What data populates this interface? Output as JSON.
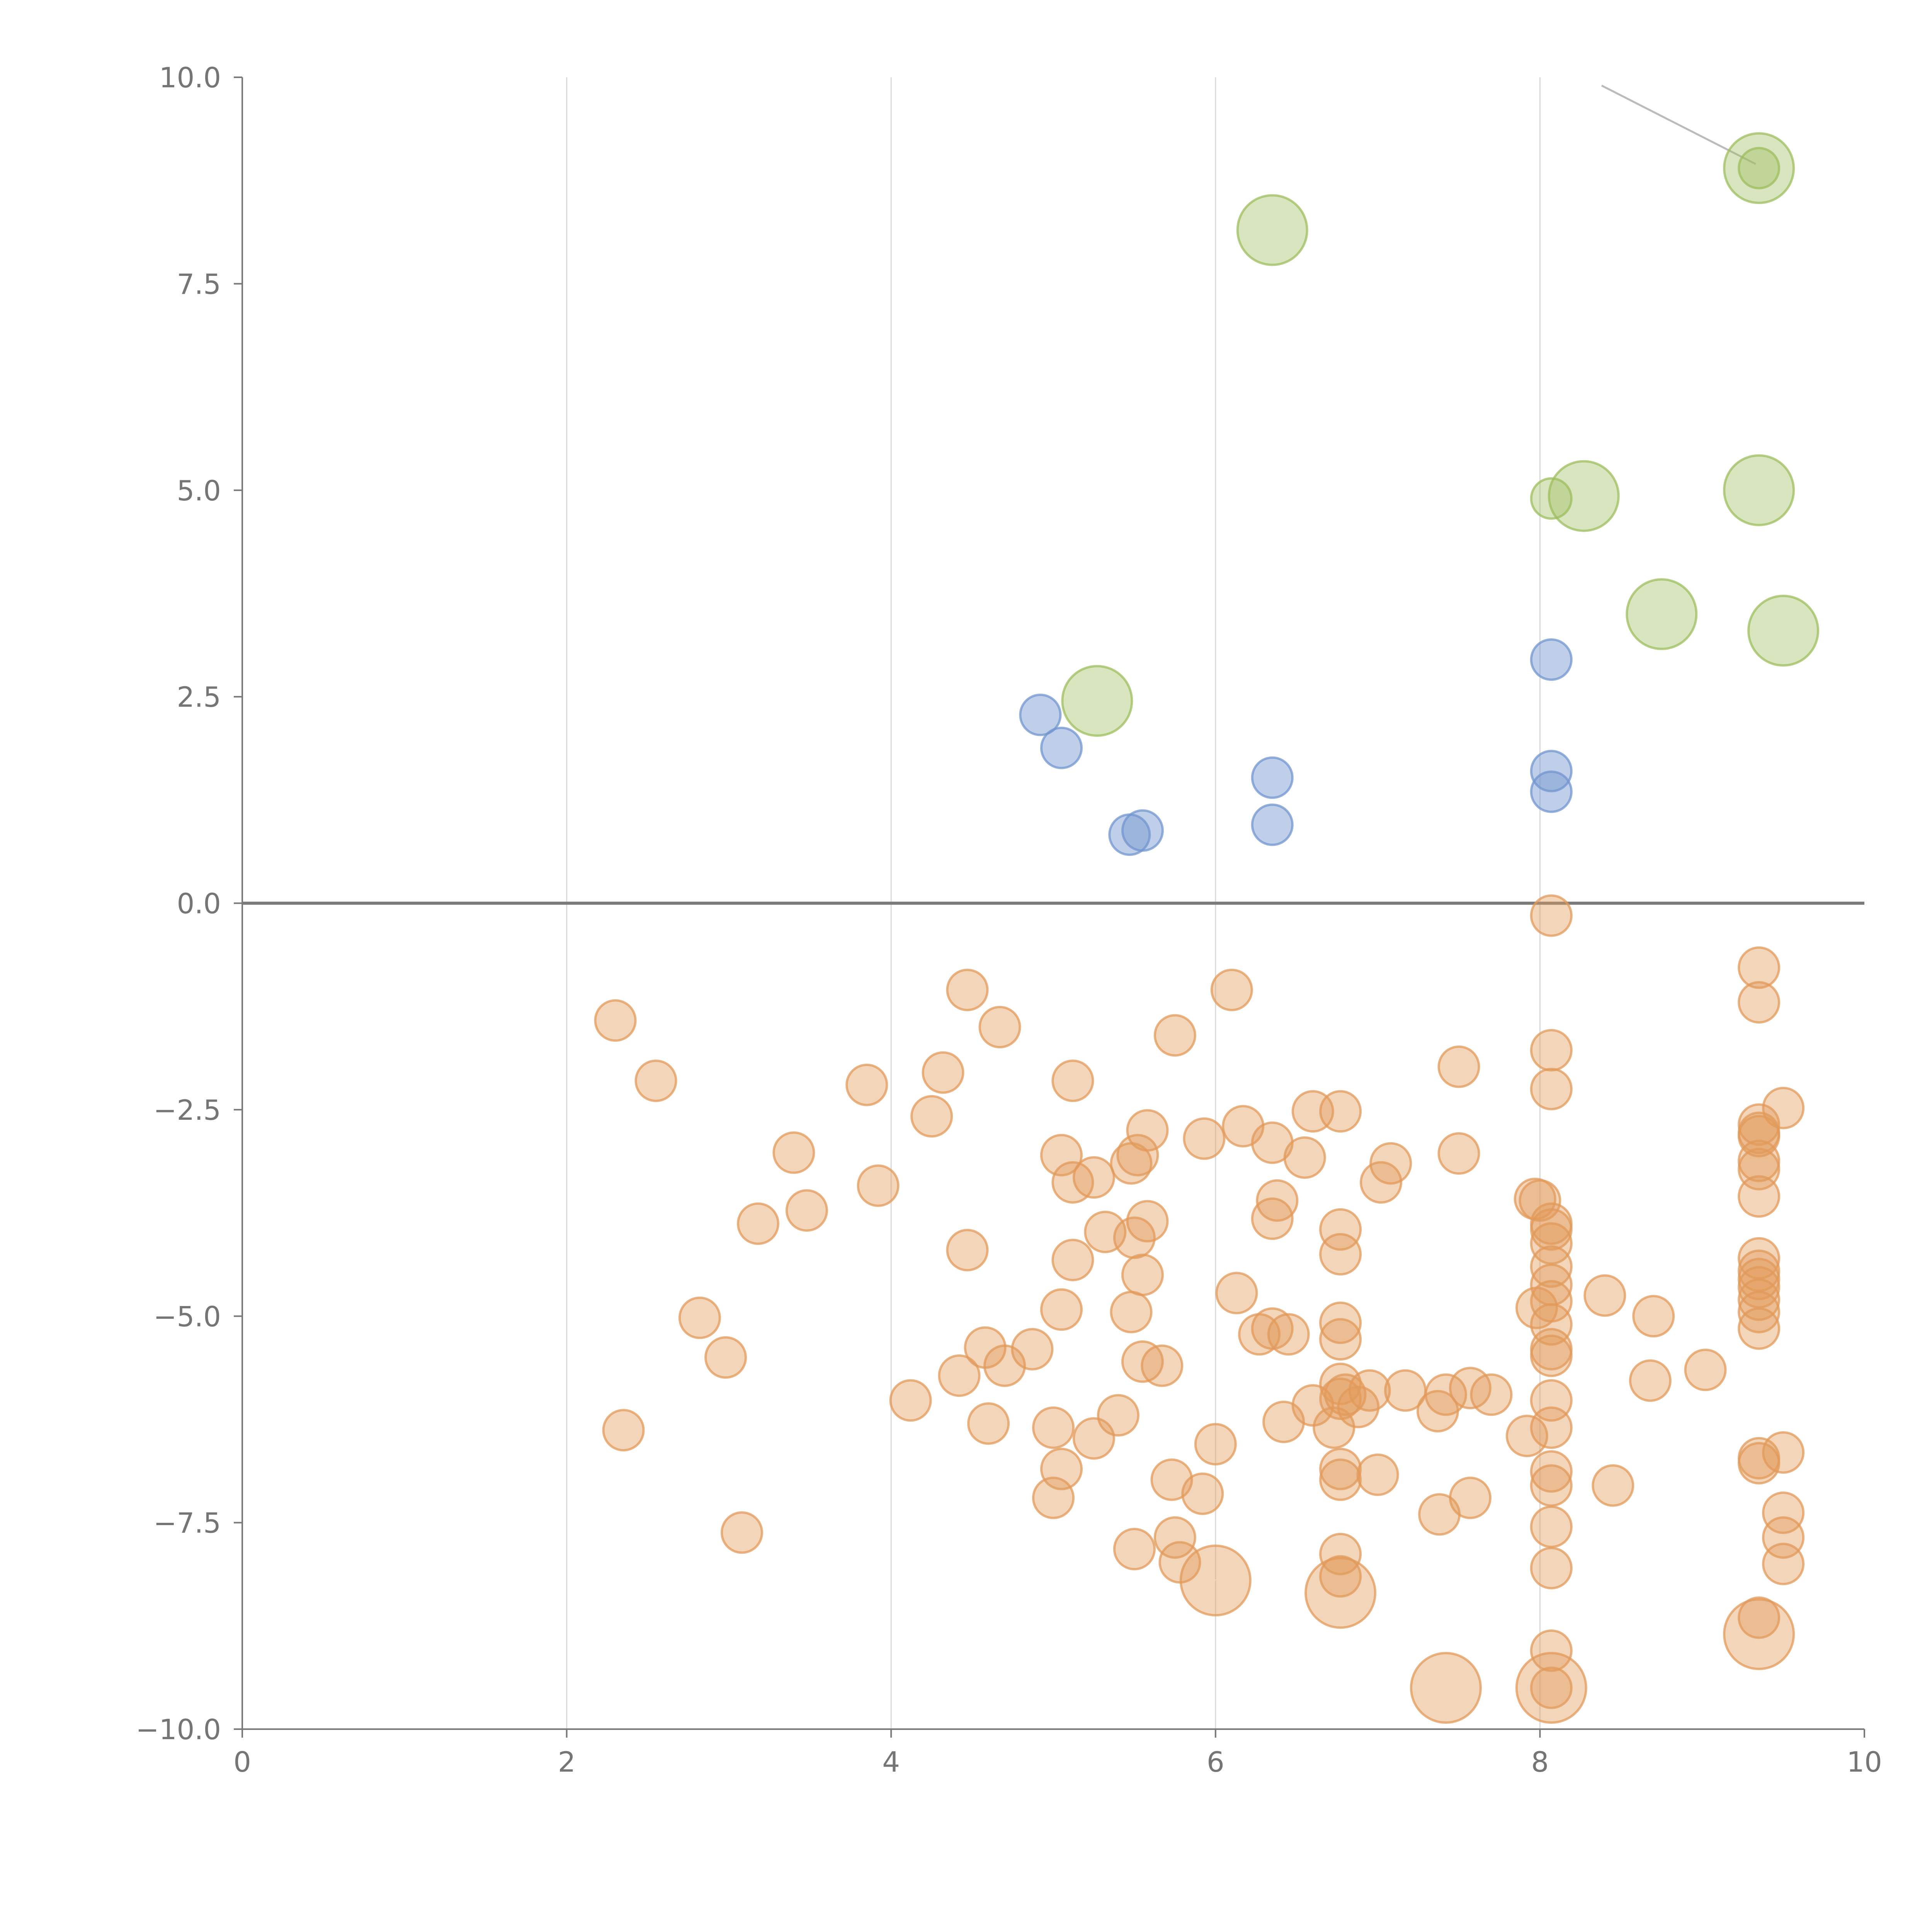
{
  "chart_data": {
    "type": "scatter",
    "title": "",
    "xlabel": "",
    "ylabel": "",
    "xlim": [
      0,
      10
    ],
    "ylim": [
      -10,
      10
    ],
    "grid": "vertical gridlines only",
    "legend": "none",
    "x_ticks": [
      "0",
      "2",
      "4",
      "6",
      "8",
      "10"
    ],
    "y_ticks": [
      "10.0",
      "7.5",
      "5.0",
      "2.5",
      "0.0",
      "−2.5",
      "−5.0",
      "−7.5",
      "−10.0"
    ],
    "x_tick_values": [
      0,
      2,
      4,
      6,
      8,
      10
    ],
    "y_tick_values": [
      10,
      7.5,
      5,
      2.5,
      0,
      -2.5,
      -5,
      -7.5,
      -10
    ],
    "reference_line_y": 0,
    "series": [
      {
        "color": "#9dbe5d",
        "fill_opacity": 0.4,
        "points": [
          {
            "x": 9.35,
            "y": 8.9,
            "r": "large"
          },
          {
            "x": 9.35,
            "y": 8.9,
            "r": "small"
          },
          {
            "x": 6.35,
            "y": 8.15,
            "r": "large"
          },
          {
            "x": 8.27,
            "y": 4.93,
            "r": "large"
          },
          {
            "x": 8.07,
            "y": 4.9,
            "r": "small"
          },
          {
            "x": 9.35,
            "y": 5.0,
            "r": "large"
          },
          {
            "x": 8.75,
            "y": 3.5,
            "r": "large"
          },
          {
            "x": 9.5,
            "y": 3.3,
            "r": "large"
          },
          {
            "x": 5.27,
            "y": 2.45,
            "r": "large"
          }
        ]
      },
      {
        "color": "#7195cf",
        "fill_opacity": 0.45,
        "points": [
          {
            "x": 4.92,
            "y": 2.28
          },
          {
            "x": 5.05,
            "y": 1.88
          },
          {
            "x": 5.47,
            "y": 0.83
          },
          {
            "x": 5.55,
            "y": 0.88
          },
          {
            "x": 6.35,
            "y": 1.52
          },
          {
            "x": 6.35,
            "y": 0.95
          },
          {
            "x": 8.07,
            "y": 2.95
          },
          {
            "x": 8.07,
            "y": 1.6
          },
          {
            "x": 8.07,
            "y": 1.35
          }
        ]
      },
      {
        "color": "#e29a5a",
        "fill_opacity": 0.42,
        "points": [
          {
            "x": 2.3,
            "y": -1.42
          },
          {
            "x": 2.55,
            "y": -2.15
          },
          {
            "x": 2.35,
            "y": -6.38
          },
          {
            "x": 2.82,
            "y": -5.02
          },
          {
            "x": 2.98,
            "y": -5.5
          },
          {
            "x": 3.08,
            "y": -7.62
          },
          {
            "x": 3.18,
            "y": -3.88
          },
          {
            "x": 3.4,
            "y": -3.02
          },
          {
            "x": 3.48,
            "y": -3.72
          },
          {
            "x": 3.85,
            "y": -2.2
          },
          {
            "x": 3.92,
            "y": -3.42
          },
          {
            "x": 4.12,
            "y": -6.02
          },
          {
            "x": 4.25,
            "y": -2.58
          },
          {
            "x": 4.32,
            "y": -2.05
          },
          {
            "x": 4.42,
            "y": -5.72
          },
          {
            "x": 4.47,
            "y": -1.05
          },
          {
            "x": 4.47,
            "y": -4.2
          },
          {
            "x": 4.58,
            "y": -5.38
          },
          {
            "x": 4.6,
            "y": -6.3
          },
          {
            "x": 4.67,
            "y": -1.5
          },
          {
            "x": 4.7,
            "y": -5.6
          },
          {
            "x": 4.87,
            "y": -5.4
          },
          {
            "x": 5.0,
            "y": -6.35
          },
          {
            "x": 5.0,
            "y": -7.2
          },
          {
            "x": 5.05,
            "y": -3.05
          },
          {
            "x": 5.05,
            "y": -4.92
          },
          {
            "x": 5.05,
            "y": -6.85
          },
          {
            "x": 5.12,
            "y": -2.15
          },
          {
            "x": 5.12,
            "y": -3.38
          },
          {
            "x": 5.12,
            "y": -4.32
          },
          {
            "x": 5.25,
            "y": -3.32
          },
          {
            "x": 5.25,
            "y": -6.48
          },
          {
            "x": 5.32,
            "y": -3.98
          },
          {
            "x": 5.4,
            "y": -6.2
          },
          {
            "x": 5.48,
            "y": -3.15
          },
          {
            "x": 5.48,
            "y": -4.95
          },
          {
            "x": 5.5,
            "y": -4.05
          },
          {
            "x": 5.5,
            "y": -7.82
          },
          {
            "x": 5.52,
            "y": -3.05
          },
          {
            "x": 5.55,
            "y": -5.55
          },
          {
            "x": 5.55,
            "y": -4.5
          },
          {
            "x": 5.58,
            "y": -2.75
          },
          {
            "x": 5.58,
            "y": -3.85
          },
          {
            "x": 5.67,
            "y": -5.6
          },
          {
            "x": 5.73,
            "y": -6.98
          },
          {
            "x": 5.75,
            "y": -1.6
          },
          {
            "x": 5.75,
            "y": -7.68
          },
          {
            "x": 5.78,
            "y": -7.98
          },
          {
            "x": 5.92,
            "y": -7.15
          },
          {
            "x": 5.93,
            "y": -2.85
          },
          {
            "x": 6.0,
            "y": -6.55
          },
          {
            "x": 6.0,
            "y": -8.2,
            "r": "large"
          },
          {
            "x": 6.1,
            "y": -1.05
          },
          {
            "x": 6.13,
            "y": -4.72
          },
          {
            "x": 6.17,
            "y": -2.7
          },
          {
            "x": 6.27,
            "y": -5.22
          },
          {
            "x": 6.35,
            "y": -2.9
          },
          {
            "x": 6.35,
            "y": -3.82
          },
          {
            "x": 6.35,
            "y": -5.15
          },
          {
            "x": 6.38,
            "y": -3.6
          },
          {
            "x": 6.42,
            "y": -6.28
          },
          {
            "x": 6.45,
            "y": -5.22
          },
          {
            "x": 6.55,
            "y": -3.08
          },
          {
            "x": 6.6,
            "y": -2.52
          },
          {
            "x": 6.6,
            "y": -6.08
          },
          {
            "x": 6.73,
            "y": -6.35
          },
          {
            "x": 6.77,
            "y": -2.52
          },
          {
            "x": 6.77,
            "y": -5.82
          },
          {
            "x": 6.77,
            "y": -5.28
          },
          {
            "x": 6.77,
            "y": -5.08
          },
          {
            "x": 6.77,
            "y": -3.95
          },
          {
            "x": 6.77,
            "y": -4.25
          },
          {
            "x": 6.77,
            "y": -6.0
          },
          {
            "x": 6.77,
            "y": -6.85
          },
          {
            "x": 6.77,
            "y": -6.98
          },
          {
            "x": 6.77,
            "y": -7.88
          },
          {
            "x": 6.77,
            "y": -8.15
          },
          {
            "x": 6.77,
            "y": -8.35,
            "r": "large"
          },
          {
            "x": 6.8,
            "y": -5.95
          },
          {
            "x": 6.88,
            "y": -6.1
          },
          {
            "x": 6.95,
            "y": -5.9
          },
          {
            "x": 7.0,
            "y": -6.92
          },
          {
            "x": 7.02,
            "y": -3.38
          },
          {
            "x": 7.08,
            "y": -3.15
          },
          {
            "x": 7.17,
            "y": -5.9
          },
          {
            "x": 7.37,
            "y": -6.15
          },
          {
            "x": 7.38,
            "y": -7.4
          },
          {
            "x": 7.42,
            "y": -5.95
          },
          {
            "x": 7.42,
            "y": -9.5,
            "r": "large"
          },
          {
            "x": 7.5,
            "y": -1.98
          },
          {
            "x": 7.5,
            "y": -3.03
          },
          {
            "x": 7.57,
            "y": -5.87
          },
          {
            "x": 7.57,
            "y": -7.2
          },
          {
            "x": 7.7,
            "y": -5.95
          },
          {
            "x": 7.92,
            "y": -6.45
          },
          {
            "x": 7.97,
            "y": -3.58
          },
          {
            "x": 7.98,
            "y": -4.9
          },
          {
            "x": 8.0,
            "y": -3.6
          },
          {
            "x": 8.07,
            "y": -0.15
          },
          {
            "x": 8.07,
            "y": -1.78
          },
          {
            "x": 8.07,
            "y": -2.25
          },
          {
            "x": 8.07,
            "y": -3.88
          },
          {
            "x": 8.07,
            "y": -3.95
          },
          {
            "x": 8.07,
            "y": -4.12
          },
          {
            "x": 8.07,
            "y": -4.4
          },
          {
            "x": 8.07,
            "y": -4.62
          },
          {
            "x": 8.07,
            "y": -4.82
          },
          {
            "x": 8.07,
            "y": -5.1
          },
          {
            "x": 8.07,
            "y": -5.4
          },
          {
            "x": 8.07,
            "y": -5.48
          },
          {
            "x": 8.07,
            "y": -6.02
          },
          {
            "x": 8.07,
            "y": -6.35
          },
          {
            "x": 8.07,
            "y": -6.88
          },
          {
            "x": 8.07,
            "y": -7.05
          },
          {
            "x": 8.07,
            "y": -7.55
          },
          {
            "x": 8.07,
            "y": -8.05
          },
          {
            "x": 8.07,
            "y": -9.05
          },
          {
            "x": 8.07,
            "y": -9.5
          },
          {
            "x": 8.07,
            "y": -9.5,
            "r": "large"
          },
          {
            "x": 8.4,
            "y": -4.75
          },
          {
            "x": 8.45,
            "y": -7.05
          },
          {
            "x": 8.68,
            "y": -5.78
          },
          {
            "x": 8.7,
            "y": -5.0
          },
          {
            "x": 9.02,
            "y": -5.65
          },
          {
            "x": 9.35,
            "y": -0.78
          },
          {
            "x": 9.35,
            "y": -1.2
          },
          {
            "x": 9.35,
            "y": -2.68
          },
          {
            "x": 9.35,
            "y": -2.78
          },
          {
            "x": 9.35,
            "y": -2.82
          },
          {
            "x": 9.35,
            "y": -3.12
          },
          {
            "x": 9.35,
            "y": -3.22
          },
          {
            "x": 9.35,
            "y": -3.55
          },
          {
            "x": 9.35,
            "y": -4.3
          },
          {
            "x": 9.35,
            "y": -4.45
          },
          {
            "x": 9.35,
            "y": -4.55
          },
          {
            "x": 9.35,
            "y": -4.65
          },
          {
            "x": 9.35,
            "y": -4.8
          },
          {
            "x": 9.35,
            "y": -4.95
          },
          {
            "x": 9.35,
            "y": -5.15
          },
          {
            "x": 9.35,
            "y": -6.72
          },
          {
            "x": 9.35,
            "y": -6.78
          },
          {
            "x": 9.35,
            "y": -8.65
          },
          {
            "x": 9.35,
            "y": -8.85,
            "r": "large"
          },
          {
            "x": 9.5,
            "y": -2.48
          },
          {
            "x": 9.5,
            "y": -6.65
          },
          {
            "x": 9.5,
            "y": -7.38
          },
          {
            "x": 9.5,
            "y": -7.68
          },
          {
            "x": 9.5,
            "y": -8.0
          }
        ]
      }
    ]
  }
}
